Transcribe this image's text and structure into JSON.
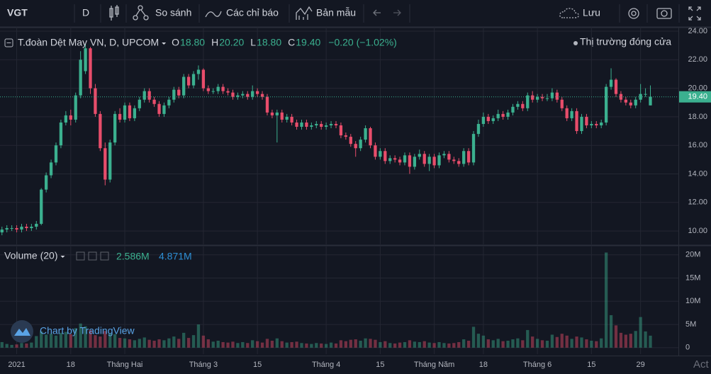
{
  "chart_data": {
    "type": "candlestick",
    "toolbar": {
      "symbol": "VGT",
      "interval": "D",
      "compare": "So sánh",
      "indicators": "Các chỉ báo",
      "templates": "Bản mẫu",
      "save": "Lưu"
    },
    "title": "T.đoàn Dệt May VN, D, UPCOM",
    "ohlc": [
      {
        "label": "O",
        "value": "18.80"
      },
      {
        "label": "H",
        "value": "20.20"
      },
      {
        "label": "L",
        "value": "18.80"
      },
      {
        "label": "C",
        "value": "19.40"
      }
    ],
    "change": "−0.20 (−1.02%)",
    "status": "Thị trường đóng cửa",
    "last_price": {
      "value": 19.4,
      "label": "19.40"
    },
    "volume_title": "Volume (20)",
    "volume_value": "2.586M",
    "volume_ma": "4.871M",
    "attribution": "Chart by TradingView",
    "watermark": "Act",
    "up_color": "#3bb08f",
    "down_color": "#e84d6b",
    "grid": true,
    "open": [
      9.9,
      10.1,
      10.2,
      10.2,
      10.1,
      10.3,
      10.2,
      10.3,
      10.5,
      12.9,
      13.9,
      14.8,
      16.0,
      17.6,
      18.1,
      17.8,
      19.5,
      21.2,
      22.8,
      20.0,
      18.2,
      15.8,
      13.6,
      16.2,
      18.2,
      17.8,
      18.8,
      17.9,
      18.6,
      19.2,
      19.8,
      19.2,
      18.9,
      18.2,
      18.8,
      19.2,
      19.9,
      19.5,
      20.8,
      20.2,
      21.0,
      21.3,
      20.0,
      19.8,
      19.8,
      20.1,
      19.8,
      19.7,
      19.4,
      19.5,
      19.6,
      19.4,
      19.8,
      19.6,
      19.4,
      18.3,
      18.1,
      18.3,
      17.8,
      18.0,
      17.6,
      17.3,
      17.6,
      17.3,
      17.4,
      17.5,
      17.3,
      17.4,
      17.5,
      17.4,
      16.7,
      16.6,
      16.1,
      15.8,
      16.4,
      17.2,
      16.0,
      15.2,
      15.6,
      14.9,
      15.1,
      15.0,
      14.8,
      15.3,
      14.5,
      15.2,
      15.4,
      14.7,
      15.2,
      14.6,
      15.3,
      15.4,
      15.0,
      14.9,
      14.7,
      15.6,
      14.8,
      16.8,
      17.5,
      18.0,
      17.7,
      17.9,
      18.2,
      18.0,
      18.3,
      18.7,
      18.9,
      18.6,
      19.5,
      19.2,
      19.4,
      19.3,
      19.3,
      19.7,
      19.2,
      18.6,
      17.9,
      18.4,
      17.0,
      18.0,
      17.4,
      17.5,
      17.4,
      17.6,
      20.1,
      20.6,
      19.6,
      19.2,
      19.0,
      18.8,
      19.2,
      19.6,
      18.8
    ],
    "high": [
      10.3,
      10.4,
      10.4,
      10.4,
      10.5,
      10.5,
      10.5,
      10.7,
      13.0,
      14.1,
      15.0,
      16.2,
      17.8,
      18.4,
      18.5,
      19.7,
      22.6,
      23.1,
      22.9,
      20.3,
      18.4,
      16.2,
      16.4,
      18.4,
      18.6,
      19.0,
      19.0,
      18.8,
      19.4,
      20.0,
      20.0,
      19.4,
      19.1,
      19.0,
      19.4,
      20.1,
      20.1,
      21.0,
      21.0,
      21.2,
      21.6,
      21.4,
      20.2,
      20.0,
      20.3,
      20.3,
      20.0,
      19.9,
      19.7,
      19.8,
      19.8,
      20.2,
      20.0,
      19.8,
      19.6,
      18.5,
      18.5,
      18.5,
      18.2,
      18.2,
      17.8,
      17.8,
      17.8,
      17.6,
      17.7,
      17.7,
      17.6,
      17.7,
      17.7,
      17.6,
      16.9,
      16.8,
      16.3,
      16.6,
      17.4,
      17.3,
      16.2,
      15.8,
      15.8,
      15.3,
      15.3,
      15.2,
      15.5,
      15.5,
      15.4,
      15.7,
      15.6,
      15.4,
      15.4,
      15.5,
      15.6,
      15.6,
      15.2,
      15.1,
      15.8,
      15.8,
      17.0,
      17.8,
      18.3,
      18.2,
      18.1,
      18.5,
      18.4,
      18.5,
      18.9,
      19.1,
      19.1,
      19.7,
      19.8,
      19.6,
      19.6,
      19.6,
      20.0,
      19.9,
      19.4,
      18.8,
      18.6,
      18.6,
      18.2,
      18.2,
      17.7,
      17.7,
      17.8,
      20.3,
      21.4,
      20.7,
      19.8,
      19.4,
      19.2,
      19.4,
      20.3,
      20.0,
      20.2
    ],
    "low": [
      9.7,
      9.9,
      10.0,
      9.9,
      9.9,
      10.0,
      10.0,
      10.1,
      10.4,
      12.7,
      13.7,
      14.6,
      15.8,
      17.4,
      17.4,
      17.6,
      19.3,
      21.0,
      19.6,
      18.0,
      15.6,
      13.2,
      13.4,
      16.0,
      17.6,
      17.6,
      17.7,
      17.7,
      18.4,
      19.0,
      19.0,
      18.7,
      18.0,
      18.0,
      18.6,
      19.0,
      19.3,
      19.3,
      20.0,
      20.0,
      20.6,
      19.8,
      19.6,
      19.6,
      19.6,
      19.6,
      19.5,
      19.2,
      19.2,
      19.3,
      19.2,
      19.2,
      19.4,
      19.2,
      18.1,
      17.9,
      16.2,
      17.6,
      17.6,
      17.4,
      17.1,
      17.1,
      17.1,
      17.1,
      17.2,
      17.1,
      17.1,
      17.2,
      17.2,
      16.5,
      16.4,
      15.9,
      15.2,
      15.6,
      16.2,
      15.8,
      15.0,
      15.0,
      14.7,
      14.7,
      14.8,
      14.6,
      14.6,
      14.0,
      14.3,
      15.0,
      14.5,
      14.2,
      14.4,
      14.4,
      15.1,
      14.8,
      14.7,
      14.5,
      14.5,
      14.6,
      14.6,
      16.6,
      17.3,
      17.5,
      17.5,
      17.7,
      17.8,
      17.8,
      18.1,
      18.5,
      18.4,
      18.4,
      19.0,
      19.0,
      19.1,
      19.1,
      19.1,
      19.0,
      18.4,
      17.7,
      17.7,
      16.8,
      16.8,
      17.2,
      17.2,
      17.2,
      17.2,
      17.4,
      19.9,
      19.4,
      19.0,
      18.8,
      18.6,
      18.6,
      19.0,
      19.4,
      18.8
    ],
    "close": [
      10.1,
      10.2,
      10.2,
      10.1,
      10.3,
      10.2,
      10.3,
      10.5,
      12.9,
      13.9,
      14.8,
      16.0,
      17.6,
      18.1,
      17.8,
      19.5,
      22.0,
      22.8,
      20.0,
      18.2,
      15.8,
      13.6,
      16.2,
      18.2,
      17.8,
      18.8,
      17.9,
      18.6,
      19.2,
      19.8,
      19.2,
      18.9,
      18.2,
      18.8,
      19.2,
      19.9,
      19.5,
      20.8,
      20.2,
      21.0,
      21.3,
      20.0,
      19.8,
      19.8,
      20.1,
      19.8,
      19.7,
      19.4,
      19.5,
      19.6,
      19.4,
      19.8,
      19.6,
      19.4,
      18.3,
      18.1,
      18.3,
      17.8,
      18.0,
      17.6,
      17.3,
      17.6,
      17.3,
      17.4,
      17.5,
      17.3,
      17.4,
      17.5,
      17.4,
      16.7,
      16.6,
      16.1,
      15.8,
      16.4,
      17.2,
      16.0,
      15.2,
      15.6,
      14.9,
      15.1,
      15.0,
      14.8,
      15.3,
      14.5,
      15.2,
      15.4,
      14.7,
      15.2,
      14.6,
      15.3,
      15.4,
      15.0,
      14.9,
      14.7,
      15.6,
      14.8,
      16.8,
      17.5,
      18.0,
      17.7,
      17.9,
      18.2,
      18.0,
      18.3,
      18.7,
      18.9,
      18.6,
      19.5,
      19.2,
      19.4,
      19.3,
      19.3,
      19.7,
      19.2,
      18.6,
      17.9,
      18.4,
      17.0,
      18.0,
      17.4,
      17.5,
      17.4,
      17.6,
      20.1,
      20.6,
      19.6,
      19.2,
      19.0,
      18.8,
      19.2,
      19.6,
      19.6,
      19.4
    ],
    "volume": [
      1.2,
      0.8,
      0.6,
      0.7,
      1.0,
      0.9,
      1.1,
      2.5,
      3.5,
      2.8,
      3.0,
      2.6,
      3.2,
      3.4,
      2.9,
      4.2,
      5.2,
      4.6,
      3.8,
      2.7,
      2.4,
      3.6,
      3.1,
      2.9,
      2.1,
      2.0,
      1.8,
      1.6,
      1.9,
      2.2,
      1.7,
      1.5,
      1.8,
      1.6,
      2.0,
      2.4,
      1.9,
      3.2,
      2.1,
      2.7,
      5.0,
      2.6,
      1.8,
      1.3,
      1.5,
      1.2,
      1.1,
      1.3,
      1.0,
      1.2,
      1.0,
      1.6,
      1.4,
      1.1,
      1.9,
      1.5,
      2.0,
      1.4,
      1.1,
      1.2,
      1.3,
      1.0,
      0.9,
      0.8,
      1.0,
      0.9,
      0.8,
      1.1,
      0.9,
      1.6,
      1.4,
      1.7,
      1.8,
      1.5,
      2.0,
      1.9,
      1.7,
      1.2,
      1.4,
      1.0,
      0.9,
      1.1,
      1.2,
      1.6,
      1.3,
      1.2,
      1.4,
      1.1,
      1.0,
      1.2,
      1.0,
      0.9,
      1.0,
      1.2,
      1.8,
      1.5,
      4.5,
      3.0,
      2.6,
      1.8,
      1.6,
      1.9,
      1.4,
      1.5,
      1.8,
      2.0,
      1.6,
      3.8,
      2.4,
      1.9,
      1.6,
      1.5,
      2.8,
      2.3,
      3.0,
      2.6,
      1.9,
      2.4,
      2.2,
      1.8,
      1.5,
      1.4,
      2.0,
      20.5,
      7.0,
      4.8,
      3.2,
      2.8,
      3.0,
      3.6,
      6.6,
      3.5,
      2.586
    ],
    "ylim": [
      9.06,
      24.3
    ],
    "yticks": [
      {
        "value": 10,
        "label": "10.00"
      },
      {
        "value": 12,
        "label": "12.00"
      },
      {
        "value": 14,
        "label": "14.00"
      },
      {
        "value": 16,
        "label": "16.00"
      },
      {
        "value": 18,
        "label": "18.00"
      },
      {
        "value": 20,
        "label": "20.00"
      },
      {
        "value": 22,
        "label": "22.00"
      },
      {
        "value": 24,
        "label": "24.00"
      }
    ],
    "y2lim": [
      -1.4,
      21.8
    ],
    "y2ticks": [
      0,
      {
        "value": 5,
        "label": "5M"
      },
      {
        "value": 10,
        "label": "10M"
      },
      {
        "value": 15,
        "label": "15M"
      },
      {
        "value": 20,
        "label": "20M"
      }
    ],
    "xlim": [
      -0.4,
      137.7
    ],
    "xticks": [
      {
        "value": 3,
        "label": "2021"
      },
      {
        "value": 14,
        "label": "18"
      },
      {
        "value": 25,
        "label": "Tháng Hai"
      },
      {
        "value": 41,
        "label": "Tháng 3"
      },
      {
        "value": 52,
        "label": "15"
      },
      {
        "value": 66,
        "label": "Tháng 4"
      },
      {
        "value": 77,
        "label": "15"
      },
      {
        "value": 88,
        "label": "Tháng Năm"
      },
      {
        "value": 98,
        "label": "18"
      },
      {
        "value": 109,
        "label": "Tháng 6"
      },
      {
        "value": 120,
        "label": "15"
      },
      {
        "value": 130,
        "label": "29"
      }
    ]
  }
}
